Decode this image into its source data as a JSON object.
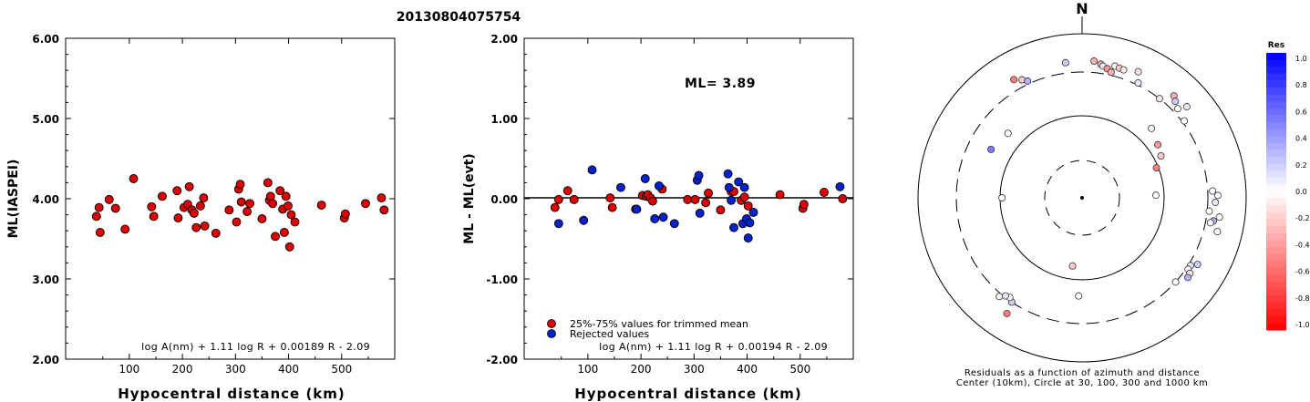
{
  "title": "20130804075754",
  "left_plot": {
    "ylabel": "ML(IASPEI)",
    "xlabel": "Hypocentral distance (km)",
    "formula": "log A(nm) + 1.11 log R + 0.00189 R - 2.09"
  },
  "middle_plot": {
    "ylabel": "ML - ML(evt)",
    "xlabel": "Hypocentral distance (km)",
    "ml_label": "ML= 3.89",
    "formula": "log A(nm) + 1.11 log R + 0.00194 R - 2.09",
    "legend": [
      {
        "label": "25%-75% values for trimmed mean",
        "color": "#dd0000"
      },
      {
        "label": "Rejected values",
        "color": "#0022cc"
      }
    ]
  },
  "polar_plot": {
    "north_label": "N",
    "caption_line1": "Residuals as a function of azimuth and distance",
    "caption_line2": "Center (10km), Circle at 30, 100, 300 and 1000 km"
  },
  "colorbar": {
    "title": "Res",
    "ticks": [
      "1.0",
      "0.8",
      "0.6",
      "0.4",
      "0.2",
      "0.0",
      "-0.2",
      "-0.4",
      "-0.6",
      "-0.8",
      "-1.0"
    ]
  },
  "chart_data": [
    {
      "type": "scatter",
      "title": "20130804075754",
      "xlabel": "Hypocentral distance (km)",
      "ylabel": "ML(IASPEI)",
      "xlim": [
        -20,
        600
      ],
      "ylim": [
        2.0,
        6.0
      ],
      "xticks": [
        "100",
        "200",
        "300",
        "400",
        "500"
      ],
      "yticks": [
        "2.00",
        "3.00",
        "4.00",
        "5.00",
        "6.00"
      ],
      "series": [
        {
          "color": "#dd0000",
          "points": [
            [
              38,
              3.78
            ],
            [
              43,
              3.89
            ],
            [
              45,
              3.58
            ],
            [
              62,
              3.99
            ],
            [
              74,
              3.88
            ],
            [
              92,
              3.62
            ],
            [
              108,
              4.25
            ],
            [
              142,
              3.9
            ],
            [
              146,
              3.78
            ],
            [
              162,
              4.03
            ],
            [
              190,
              4.1
            ],
            [
              192,
              3.76
            ],
            [
              203,
              3.89
            ],
            [
              210,
              3.93
            ],
            [
              213,
              4.15
            ],
            [
              218,
              3.86
            ],
            [
              222,
              3.82
            ],
            [
              226,
              3.64
            ],
            [
              234,
              3.91
            ],
            [
              240,
              4.01
            ],
            [
              242,
              3.66
            ],
            [
              263,
              3.57
            ],
            [
              288,
              3.86
            ],
            [
              302,
              3.71
            ],
            [
              306,
              4.12
            ],
            [
              309,
              4.18
            ],
            [
              311,
              3.96
            ],
            [
              322,
              3.84
            ],
            [
              327,
              3.94
            ],
            [
              350,
              3.75
            ],
            [
              361,
              4.2
            ],
            [
              364,
              3.98
            ],
            [
              366,
              4.03
            ],
            [
              370,
              3.94
            ],
            [
              375,
              3.53
            ],
            [
              384,
              4.1
            ],
            [
              389,
              3.87
            ],
            [
              392,
              3.58
            ],
            [
              395,
              4.03
            ],
            [
              399,
              3.91
            ],
            [
              402,
              3.4
            ],
            [
              405,
              3.8
            ],
            [
              412,
              3.71
            ],
            [
              462,
              3.92
            ],
            [
              505,
              3.76
            ],
            [
              507,
              3.81
            ],
            [
              545,
              3.94
            ],
            [
              575,
              4.01
            ],
            [
              580,
              3.86
            ]
          ]
        }
      ]
    },
    {
      "type": "scatter",
      "xlabel": "Hypocentral distance (km)",
      "ylabel": "ML - ML(evt)",
      "xlim": [
        -20,
        600
      ],
      "ylim": [
        -2.0,
        2.0
      ],
      "xticks": [
        "100",
        "200",
        "300",
        "400",
        "500"
      ],
      "yticks": [
        "-2.00",
        "-1.00",
        "0.00",
        "1.00",
        "2.00"
      ],
      "hline": 0.0,
      "annotation": "ML= 3.89",
      "series": [
        {
          "name": "25%-75% values for trimmed mean",
          "color": "#dd0000",
          "points": [
            [
              38,
              -0.11
            ],
            [
              45,
              -0.01
            ],
            [
              62,
              0.1
            ],
            [
              74,
              -0.01
            ],
            [
              142,
              0.01
            ],
            [
              146,
              -0.11
            ],
            [
              190,
              -0.13
            ],
            [
              203,
              0.04
            ],
            [
              210,
              0.03
            ],
            [
              213,
              0.05
            ],
            [
              218,
              0.01
            ],
            [
              222,
              -0.03
            ],
            [
              240,
              0.12
            ],
            [
              288,
              -0.01
            ],
            [
              302,
              -0.01
            ],
            [
              322,
              -0.05
            ],
            [
              327,
              0.07
            ],
            [
              350,
              -0.14
            ],
            [
              370,
              0.09
            ],
            [
              375,
              0.09
            ],
            [
              389,
              -0.02
            ],
            [
              395,
              0.02
            ],
            [
              402,
              -0.09
            ],
            [
              462,
              0.05
            ],
            [
              505,
              -0.12
            ],
            [
              507,
              -0.07
            ],
            [
              545,
              0.08
            ],
            [
              580,
              0.0
            ]
          ]
        },
        {
          "name": "Rejected values",
          "color": "#0022cc",
          "points": [
            [
              45,
              -0.31
            ],
            [
              92,
              -0.27
            ],
            [
              108,
              0.36
            ],
            [
              162,
              0.14
            ],
            [
              192,
              -0.13
            ],
            [
              208,
              0.25
            ],
            [
              226,
              -0.25
            ],
            [
              234,
              0.16
            ],
            [
              242,
              -0.23
            ],
            [
              263,
              -0.31
            ],
            [
              306,
              0.23
            ],
            [
              309,
              0.29
            ],
            [
              311,
              -0.18
            ],
            [
              364,
              0.31
            ],
            [
              366,
              0.14
            ],
            [
              370,
              -0.02
            ],
            [
              375,
              -0.36
            ],
            [
              384,
              0.21
            ],
            [
              392,
              -0.31
            ],
            [
              395,
              0.14
            ],
            [
              399,
              -0.25
            ],
            [
              402,
              -0.49
            ],
            [
              405,
              -0.3
            ],
            [
              412,
              -0.17
            ],
            [
              575,
              0.15
            ]
          ]
        }
      ]
    },
    {
      "type": "scatter",
      "title": "Residuals as a function of azimuth and distance",
      "subtitle": "Center (10km), Circle at 30, 100, 300 and 1000 km",
      "rings_km": [
        30,
        100,
        300,
        1000
      ],
      "points_note": "azimuth (deg from N) and distance (km); residual colored on Res scale",
      "points": [
        {
          "az": 330,
          "dist": 420,
          "res": -0.5
        },
        {
          "az": 333,
          "dist": 370,
          "res": -0.2
        },
        {
          "az": 335,
          "dist": 330,
          "res": 0.3
        },
        {
          "az": 353,
          "dist": 415,
          "res": 0.2
        },
        {
          "az": 5,
          "dist": 430,
          "res": -0.3
        },
        {
          "az": 8,
          "dist": 400,
          "res": -0.3
        },
        {
          "az": 9,
          "dist": 380,
          "res": 0.1
        },
        {
          "az": 11,
          "dist": 360,
          "res": -0.4
        },
        {
          "az": 13,
          "dist": 330,
          "res": -0.3
        },
        {
          "az": 14,
          "dist": 410,
          "res": 0.0
        },
        {
          "az": 16,
          "dist": 400,
          "res": -0.2
        },
        {
          "az": 18,
          "dist": 395,
          "res": -0.1
        },
        {
          "az": 24,
          "dist": 440,
          "res": -0.1
        },
        {
          "az": 26,
          "dist": 320,
          "res": 0.1
        },
        {
          "az": 38,
          "dist": 300,
          "res": -0.1
        },
        {
          "az": 42,
          "dist": 430,
          "res": -0.3
        },
        {
          "az": 44,
          "dist": 390,
          "res": 0.2
        },
        {
          "az": 47,
          "dist": 350,
          "res": 0.0
        },
        {
          "az": 49,
          "dist": 450,
          "res": 0.1
        },
        {
          "az": 53,
          "dist": 320,
          "res": 0.0
        },
        {
          "az": 45,
          "dist": 150,
          "res": 0.0
        },
        {
          "az": 55,
          "dist": 130,
          "res": -0.4
        },
        {
          "az": 62,
          "dist": 120,
          "res": -0.2
        },
        {
          "az": 68,
          "dist": 95,
          "res": -0.5
        },
        {
          "az": 88,
          "dist": 80,
          "res": 0.0
        },
        {
          "az": 87,
          "dist": 350,
          "res": 0.0
        },
        {
          "az": 89,
          "dist": 410,
          "res": 0.0
        },
        {
          "az": 92,
          "dist": 380,
          "res": 0.1
        },
        {
          "az": 96,
          "dist": 320,
          "res": 0.0
        },
        {
          "az": 98,
          "dist": 450,
          "res": 0.0
        },
        {
          "az": 100,
          "dist": 380,
          "res": 0.3
        },
        {
          "az": 101,
          "dist": 350,
          "res": 0.0
        },
        {
          "az": 104,
          "dist": 460,
          "res": 0.0
        },
        {
          "az": 120,
          "dist": 380,
          "res": 0.2
        },
        {
          "az": 122,
          "dist": 320,
          "res": 0.1
        },
        {
          "az": 124,
          "dist": 320,
          "res": 0.0
        },
        {
          "az": 125,
          "dist": 360,
          "res": -0.1
        },
        {
          "az": 127,
          "dist": 370,
          "res": 0.3
        },
        {
          "az": 132,
          "dist": 300,
          "res": 0.0
        },
        {
          "az": 182,
          "dist": 150,
          "res": 0.0
        },
        {
          "az": 188,
          "dist": 70,
          "res": -0.2
        },
        {
          "az": 214,
          "dist": 300,
          "res": 0.2
        },
        {
          "az": 216,
          "dist": 280,
          "res": 0.0
        },
        {
          "az": 218,
          "dist": 290,
          "res": 0.1
        },
        {
          "az": 220,
          "dist": 330,
          "res": 0.0
        },
        {
          "az": 213,
          "dist": 440,
          "res": -0.5
        },
        {
          "az": 270,
          "dist": 95,
          "res": 0.0
        },
        {
          "az": 298,
          "dist": 170,
          "res": 0.5
        },
        {
          "az": 311,
          "dist": 150,
          "res": 0.0
        }
      ]
    }
  ]
}
